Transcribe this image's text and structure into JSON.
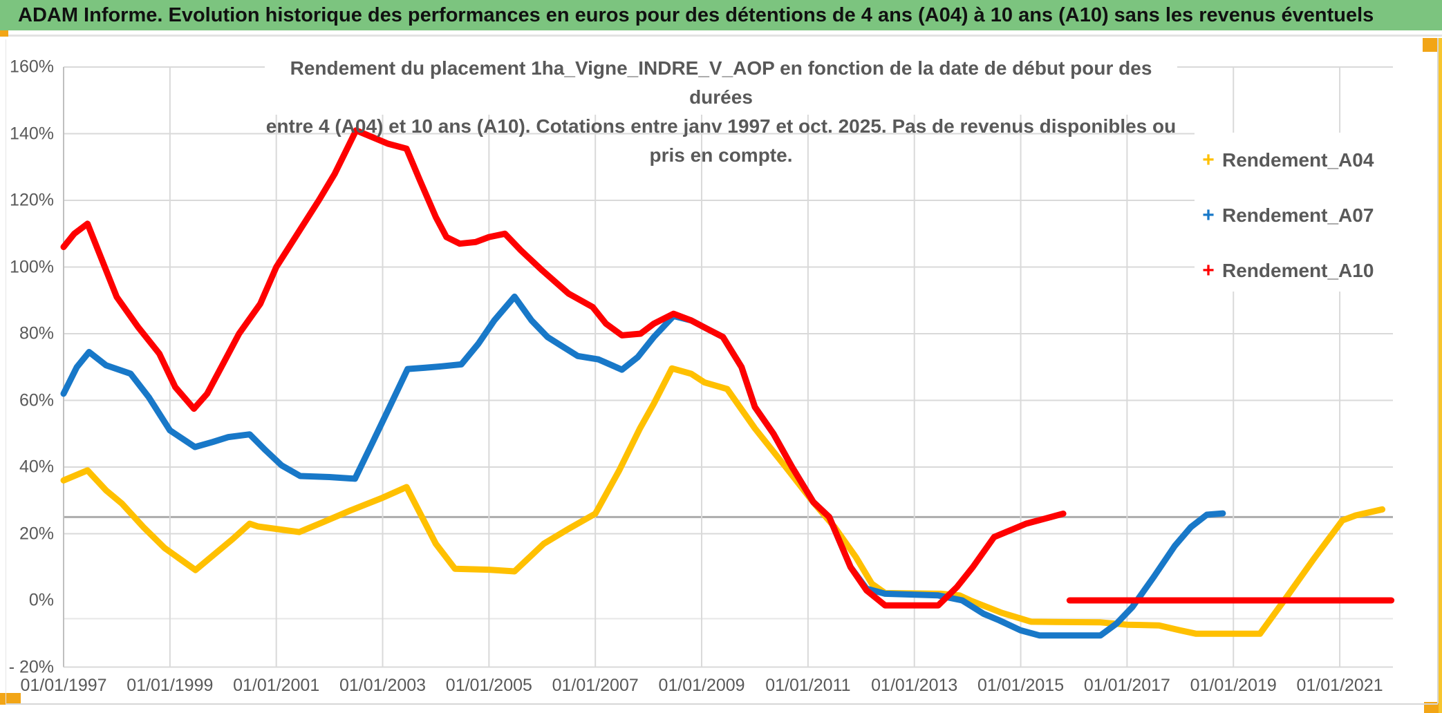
{
  "header": {
    "title": "ADAM Informe. Evolution historique des performances en euros pour des détentions de 4 ans (A04) à 10 ans (A10) sans les revenus éventuels"
  },
  "chart": {
    "title_line1": "Rendement du placement 1ha_Vigne_INDRE_V_AOP en fonction de la date de début pour des durées",
    "title_line2": "entre 4 (A04) et 10 ans (A10). Cotations entre janv 1997 et oct. 2025. Pas de revenus disponibles ou pris en compte."
  },
  "legend": {
    "items": [
      {
        "label": "Rendement_A04",
        "color": "#FFC000"
      },
      {
        "label": "Rendement_A07",
        "color": "#1878C8"
      },
      {
        "label": "Rendement_A10",
        "color": "#FE0000"
      }
    ]
  },
  "colors": {
    "header_green": "#7cc47f",
    "grid": "#d9d9d9",
    "grid_dark": "#ababab",
    "grid_faint": "#e7e7e7",
    "axis_line": "#bfbfbf",
    "text_gray": "#595959",
    "accent_orange": "#f2a516",
    "accent_gold": "#f7c52e"
  },
  "chart_data": {
    "type": "line",
    "title": "Rendement du placement 1ha_Vigne_INDRE_V_AOP en fonction de la date de début pour des durées entre 4 (A04) et 10 ans (A10). Cotations entre janv 1997 et oct. 2025. Pas de revenus disponibles ou pris en compte.",
    "x_axis": {
      "start_year": 1997.0,
      "end_year": 2022.0,
      "tick_labels": [
        "01/01/1997",
        "01/01/1999",
        "01/01/2001",
        "01/01/2003",
        "01/01/2005",
        "01/01/2007",
        "01/01/2009",
        "01/01/2011",
        "01/01/2013",
        "01/01/2015",
        "01/01/2017",
        "01/01/2019",
        "01/01/2021"
      ],
      "tick_years": [
        1997,
        1999,
        2001,
        2003,
        2005,
        2007,
        2009,
        2011,
        2013,
        2015,
        2017,
        2019,
        2021
      ]
    },
    "y_axis": {
      "min": -20,
      "max": 160,
      "step": 20,
      "unit": "%",
      "tick_labels": [
        "160%",
        "140%",
        "120%",
        "100%",
        "80%",
        "60%",
        "40%",
        "20%",
        "0%",
        "- 20%"
      ],
      "tick_values": [
        160,
        140,
        120,
        100,
        80,
        60,
        40,
        20,
        0,
        -20
      ],
      "gridline_values": [
        160,
        140,
        120,
        100,
        80,
        60,
        40,
        20,
        -20
      ],
      "zero_gridline_hidden": true
    },
    "reference_lines": [
      {
        "value": 25,
        "style": "dark"
      },
      {
        "value": -5.5,
        "style": "faint"
      }
    ],
    "legend_position": "right",
    "series": [
      {
        "name": "Rendement_A04",
        "color": "#FFC000",
        "points": [
          [
            1997.0,
            36
          ],
          [
            1997.45,
            39
          ],
          [
            1997.8,
            33
          ],
          [
            1998.1,
            29
          ],
          [
            1998.5,
            22
          ],
          [
            1998.9,
            15.7
          ],
          [
            1999.48,
            9.1
          ],
          [
            2000.18,
            18.4
          ],
          [
            2000.5,
            23
          ],
          [
            2000.65,
            22.2
          ],
          [
            2001.43,
            20.5
          ],
          [
            2001.9,
            23.6
          ],
          [
            2002.4,
            27
          ],
          [
            2003.0,
            30.8
          ],
          [
            2003.45,
            34
          ],
          [
            2004.0,
            17
          ],
          [
            2004.36,
            9.5
          ],
          [
            2005.0,
            9.2
          ],
          [
            2005.48,
            8.7
          ],
          [
            2006.03,
            17
          ],
          [
            2006.5,
            21.5
          ],
          [
            2007.0,
            26
          ],
          [
            2007.45,
            39
          ],
          [
            2007.84,
            51.6
          ],
          [
            2008.1,
            59
          ],
          [
            2008.44,
            69.6
          ],
          [
            2008.8,
            68
          ],
          [
            2009.05,
            65.4
          ],
          [
            2009.48,
            63.4
          ],
          [
            2010.0,
            51.6
          ],
          [
            2010.57,
            40.2
          ],
          [
            2011.1,
            29.4
          ],
          [
            2011.5,
            22
          ],
          [
            2011.9,
            13
          ],
          [
            2012.2,
            5
          ],
          [
            2012.45,
            2.2
          ],
          [
            2013.5,
            2
          ],
          [
            2013.85,
            1.5
          ],
          [
            2014.05,
            0
          ],
          [
            2014.64,
            -3.7
          ],
          [
            2015.2,
            -6.4
          ],
          [
            2016.5,
            -6.6
          ],
          [
            2017.0,
            -7.3
          ],
          [
            2017.6,
            -7.5
          ],
          [
            2018.0,
            -9
          ],
          [
            2018.3,
            -10
          ],
          [
            2019.5,
            -10
          ],
          [
            2020.0,
            1
          ],
          [
            2020.5,
            12.2
          ],
          [
            2021.05,
            24
          ],
          [
            2021.3,
            25.5
          ],
          [
            2021.8,
            27.3
          ]
        ]
      },
      {
        "name": "Rendement_A07",
        "color": "#1878C8",
        "points": [
          [
            1997.0,
            62
          ],
          [
            1997.25,
            70
          ],
          [
            1997.48,
            74.5
          ],
          [
            1997.8,
            70.5
          ],
          [
            1998.26,
            68
          ],
          [
            1998.6,
            61
          ],
          [
            1999.0,
            51
          ],
          [
            1999.47,
            46
          ],
          [
            1999.8,
            47.5
          ],
          [
            2000.1,
            49
          ],
          [
            2000.5,
            49.8
          ],
          [
            2000.8,
            45
          ],
          [
            2001.1,
            40.5
          ],
          [
            2001.45,
            37.3
          ],
          [
            2002.0,
            37
          ],
          [
            2002.48,
            36.5
          ],
          [
            2002.8,
            47
          ],
          [
            2003.1,
            57
          ],
          [
            2003.47,
            69.4
          ],
          [
            2003.8,
            69.8
          ],
          [
            2004.1,
            70.2
          ],
          [
            2004.48,
            70.8
          ],
          [
            2004.8,
            77
          ],
          [
            2005.1,
            84
          ],
          [
            2005.48,
            91.1
          ],
          [
            2005.8,
            84
          ],
          [
            2006.1,
            79
          ],
          [
            2006.36,
            76.4
          ],
          [
            2006.67,
            73.3
          ],
          [
            2007.06,
            72.3
          ],
          [
            2007.5,
            69.2
          ],
          [
            2007.8,
            73
          ],
          [
            2008.1,
            79
          ],
          [
            2008.47,
            85.3
          ],
          [
            2008.8,
            84
          ],
          [
            2009.1,
            81.5
          ],
          [
            2009.4,
            79
          ],
          [
            2009.75,
            70
          ],
          [
            2010.0,
            58
          ],
          [
            2010.35,
            50
          ],
          [
            2010.7,
            40
          ],
          [
            2011.1,
            29.5
          ],
          [
            2011.4,
            25
          ],
          [
            2011.8,
            10
          ],
          [
            2012.1,
            3.5
          ],
          [
            2012.45,
            2
          ],
          [
            2013.45,
            1.5
          ],
          [
            2013.9,
            0
          ],
          [
            2014.3,
            -4
          ],
          [
            2014.6,
            -6
          ],
          [
            2015.0,
            -9
          ],
          [
            2015.35,
            -10.5
          ],
          [
            2016.5,
            -10.5
          ],
          [
            2016.8,
            -7
          ],
          [
            2017.1,
            -2
          ],
          [
            2017.5,
            7
          ],
          [
            2017.9,
            16.4
          ],
          [
            2018.2,
            22
          ],
          [
            2018.5,
            25.7
          ],
          [
            2018.8,
            26.1
          ]
        ]
      },
      {
        "name": "Rendement_A10",
        "color": "#FE0000",
        "points": [
          [
            1997.0,
            106
          ],
          [
            1997.2,
            110
          ],
          [
            1997.45,
            113
          ],
          [
            1997.7,
            103
          ],
          [
            1998.0,
            91
          ],
          [
            1998.4,
            82
          ],
          [
            1998.8,
            74
          ],
          [
            1999.1,
            64
          ],
          [
            1999.45,
            57.5
          ],
          [
            1999.7,
            62
          ],
          [
            2000.0,
            71
          ],
          [
            2000.3,
            80
          ],
          [
            2000.7,
            89
          ],
          [
            2001.0,
            100
          ],
          [
            2001.4,
            110
          ],
          [
            2001.8,
            120
          ],
          [
            2002.1,
            128
          ],
          [
            2002.5,
            141
          ],
          [
            2002.8,
            139
          ],
          [
            2003.1,
            137
          ],
          [
            2003.45,
            135.5
          ],
          [
            2003.7,
            126
          ],
          [
            2004.0,
            115
          ],
          [
            2004.2,
            109
          ],
          [
            2004.45,
            107
          ],
          [
            2004.75,
            107.5
          ],
          [
            2005.0,
            109
          ],
          [
            2005.3,
            110
          ],
          [
            2005.6,
            105
          ],
          [
            2006.0,
            99
          ],
          [
            2006.5,
            92
          ],
          [
            2006.95,
            88
          ],
          [
            2007.2,
            83
          ],
          [
            2007.5,
            79.5
          ],
          [
            2007.85,
            80
          ],
          [
            2008.1,
            83
          ],
          [
            2008.47,
            86
          ],
          [
            2008.8,
            84
          ],
          [
            2009.1,
            81.5
          ],
          [
            2009.4,
            79
          ],
          [
            2009.75,
            70
          ],
          [
            2010.0,
            58
          ],
          [
            2010.35,
            50
          ],
          [
            2010.7,
            40
          ],
          [
            2011.1,
            29.5
          ],
          [
            2011.4,
            25
          ],
          [
            2011.8,
            10
          ],
          [
            2012.1,
            3
          ],
          [
            2012.45,
            -1.5
          ],
          [
            2013.45,
            -1.5
          ],
          [
            2013.8,
            4
          ],
          [
            2014.1,
            10
          ],
          [
            2014.5,
            19
          ],
          [
            2014.8,
            21
          ],
          [
            2015.1,
            23
          ],
          [
            2015.45,
            24.5
          ],
          [
            2015.8,
            26
          ]
        ],
        "extra_flat_segment": [
          [
            2015.92,
            0
          ],
          [
            2021.97,
            0
          ]
        ]
      }
    ]
  }
}
